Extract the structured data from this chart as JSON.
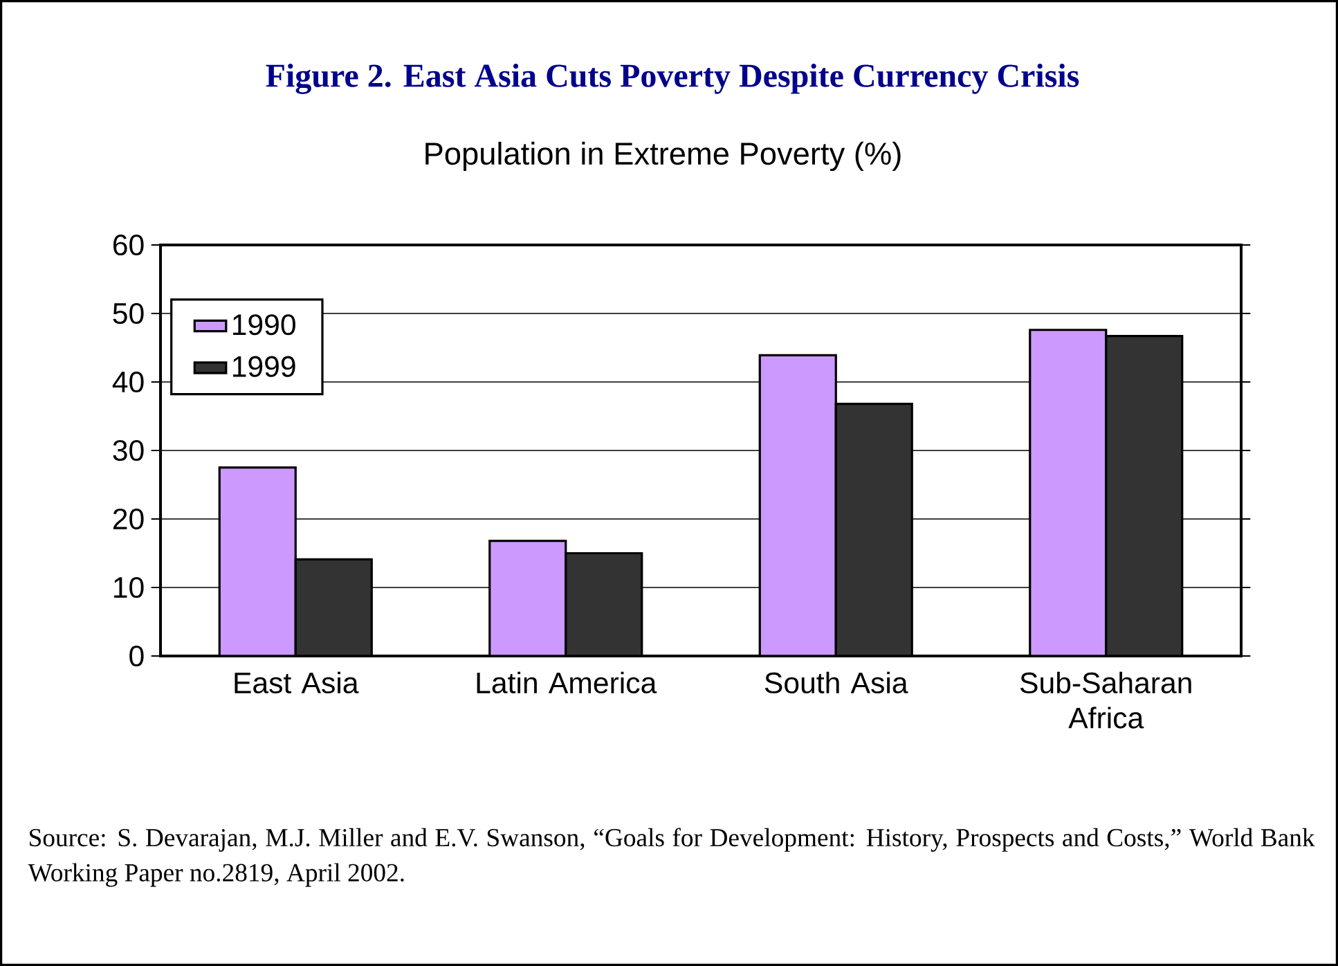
{
  "chart_data": {
    "type": "bar",
    "title": "Figure 2. East Asia Cuts Poverty Despite Currency Crisis",
    "subtitle": "Population in Extreme Poverty (%)",
    "categories": [
      "East Asia",
      "Latin America",
      "South Asia",
      "Sub-Saharan Africa"
    ],
    "series": [
      {
        "name": "1990",
        "color": "#cc99ff",
        "values": [
          27.5,
          16.8,
          43.9,
          47.6
        ]
      },
      {
        "name": "1999",
        "color": "#333333",
        "values": [
          14.1,
          15.0,
          36.8,
          46.7
        ]
      }
    ],
    "ylim": [
      0,
      60
    ],
    "yticks": [
      0,
      10,
      20,
      30,
      40,
      50,
      60
    ],
    "grid": "y",
    "legend": "top left",
    "annotations": [
      "Source: S. Devarajan, M.J. Miller and E.V. Swanson, “Goals for Development: History, Prospects and Costs,” World Bank Working Paper no.2819, April 2002."
    ]
  }
}
